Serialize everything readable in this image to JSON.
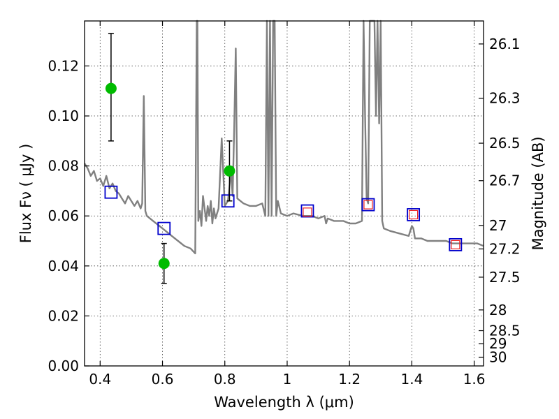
{
  "chart_data": {
    "type": "scatter",
    "xlabel": "Wavelength  λ (μm)",
    "ylabel": "Flux  Fν  ( μJy )",
    "ylabel_right": "Magnitude (AB)",
    "xlim": [
      0.35,
      1.63
    ],
    "ylim": [
      0.0,
      0.138
    ],
    "x_ticks": [
      "0.4",
      "0.6",
      "0.8",
      "1",
      "1.2",
      "1.4",
      "1.6"
    ],
    "x_tick_values": [
      0.4,
      0.6,
      0.8,
      1.0,
      1.2,
      1.4,
      1.6
    ],
    "y_ticks": [
      "0.00",
      "0.02",
      "0.04",
      "0.06",
      "0.08",
      "0.10",
      "0.12"
    ],
    "y_tick_values": [
      0.0,
      0.02,
      0.04,
      0.06,
      0.08,
      0.1,
      0.12
    ],
    "right_ticks": [
      {
        "label": "26.1",
        "flux": 0.1288
      },
      {
        "label": "26.3",
        "flux": 0.1071
      },
      {
        "label": "26.5",
        "flux": 0.0891
      },
      {
        "label": "26.7",
        "flux": 0.0741
      },
      {
        "label": "27",
        "flux": 0.0562
      },
      {
        "label": "27.2",
        "flux": 0.0468
      },
      {
        "label": "27.5",
        "flux": 0.0355
      },
      {
        "label": "28",
        "flux": 0.0224
      },
      {
        "label": "28.5",
        "flux": 0.0141
      },
      {
        "label": "29",
        "flux": 0.0089
      },
      {
        "label": "30",
        "flux": 0.0035
      }
    ],
    "grid": true,
    "colors": {
      "spectrum": "#808080",
      "observed": "#00bb00",
      "model_blue": "#0000cc",
      "model_red": "#ee2222"
    },
    "series": [
      {
        "kind": "spectrum",
        "x": [
          0.35,
          0.36,
          0.37,
          0.38,
          0.39,
          0.4,
          0.41,
          0.42,
          0.43,
          0.44,
          0.45,
          0.46,
          0.47,
          0.48,
          0.49,
          0.5,
          0.51,
          0.52,
          0.53,
          0.535,
          0.54,
          0.545,
          0.55,
          0.57,
          0.59,
          0.61,
          0.63,
          0.65,
          0.67,
          0.69,
          0.705,
          0.71,
          0.712,
          0.715,
          0.72,
          0.725,
          0.73,
          0.74,
          0.745,
          0.75,
          0.755,
          0.76,
          0.765,
          0.77,
          0.775,
          0.78,
          0.79,
          0.8,
          0.81,
          0.82,
          0.825,
          0.83,
          0.835,
          0.84,
          0.86,
          0.88,
          0.9,
          0.92,
          0.93,
          0.935,
          0.94,
          0.945,
          0.95,
          0.955,
          0.96,
          0.965,
          0.97,
          0.98,
          1.0,
          1.02,
          1.05,
          1.08,
          1.1,
          1.12,
          1.125,
          1.13,
          1.15,
          1.18,
          1.2,
          1.22,
          1.24,
          1.245,
          1.25,
          1.255,
          1.26,
          1.265,
          1.27,
          1.28,
          1.285,
          1.29,
          1.295,
          1.3,
          1.305,
          1.31,
          1.33,
          1.36,
          1.39,
          1.4,
          1.405,
          1.41,
          1.43,
          1.45,
          1.47,
          1.49,
          1.51,
          1.53,
          1.55,
          1.57,
          1.59,
          1.61,
          1.63
        ],
        "y": [
          0.081,
          0.079,
          0.076,
          0.078,
          0.074,
          0.075,
          0.072,
          0.076,
          0.071,
          0.073,
          0.07,
          0.069,
          0.067,
          0.065,
          0.068,
          0.066,
          0.064,
          0.066,
          0.063,
          0.065,
          0.108,
          0.062,
          0.06,
          0.058,
          0.056,
          0.054,
          0.052,
          0.05,
          0.048,
          0.047,
          0.045,
          0.138,
          0.138,
          0.058,
          0.062,
          0.056,
          0.068,
          0.058,
          0.064,
          0.06,
          0.066,
          0.057,
          0.063,
          0.059,
          0.061,
          0.063,
          0.091,
          0.064,
          0.066,
          0.078,
          0.068,
          0.094,
          0.127,
          0.067,
          0.065,
          0.064,
          0.064,
          0.065,
          0.06,
          0.138,
          0.06,
          0.138,
          0.06,
          0.138,
          0.138,
          0.06,
          0.066,
          0.061,
          0.06,
          0.061,
          0.06,
          0.06,
          0.059,
          0.06,
          0.057,
          0.059,
          0.058,
          0.058,
          0.057,
          0.057,
          0.058,
          0.138,
          0.1,
          0.067,
          0.065,
          0.138,
          0.138,
          0.138,
          0.1,
          0.138,
          0.097,
          0.138,
          0.058,
          0.055,
          0.054,
          0.053,
          0.052,
          0.056,
          0.055,
          0.051,
          0.051,
          0.05,
          0.05,
          0.05,
          0.05,
          0.049,
          0.049,
          0.049,
          0.049,
          0.049,
          0.048
        ]
      },
      {
        "kind": "observed",
        "x": [
          0.435,
          0.605,
          0.815
        ],
        "y": [
          0.111,
          0.041,
          0.078
        ],
        "yerr_low": [
          0.09,
          0.033,
          0.066
        ],
        "yerr_high": [
          0.133,
          0.049,
          0.09
        ]
      },
      {
        "kind": "model_blue",
        "x": [
          0.435,
          0.605,
          0.81,
          1.065,
          1.26,
          1.405,
          1.54
        ],
        "y": [
          0.0695,
          0.055,
          0.066,
          0.062,
          0.0645,
          0.0605,
          0.0485
        ]
      },
      {
        "kind": "model_red",
        "x": [
          1.065,
          1.26,
          1.405,
          1.54
        ],
        "y": [
          0.0615,
          0.0645,
          0.0605,
          0.0485
        ]
      }
    ]
  }
}
